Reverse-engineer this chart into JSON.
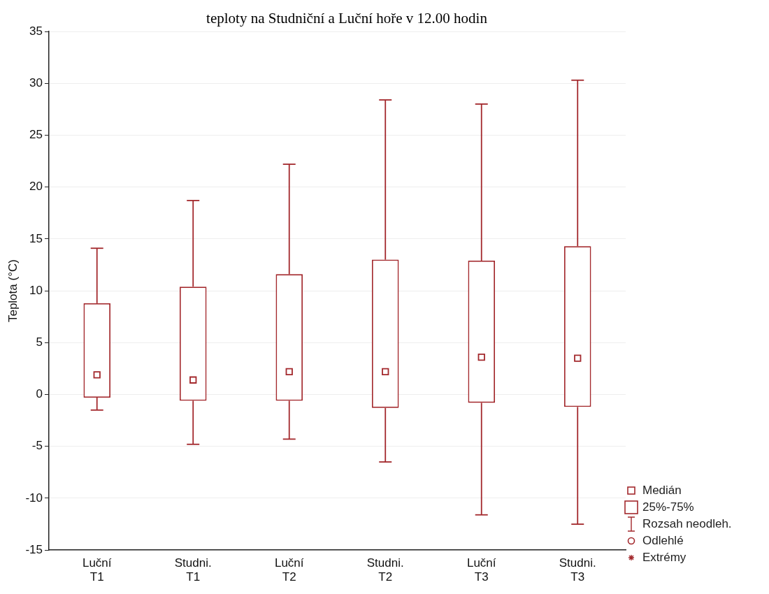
{
  "chart_data": {
    "type": "box",
    "title": "teploty na Studniční a Luční hoře v 12.00 hodin",
    "ylabel": "Teplota (°C)",
    "categories": [
      "Luční T1",
      "Studni. T1",
      "Luční T2",
      "Studni. T2",
      "Luční T3",
      "Studni. T3"
    ],
    "color": "#a3282c",
    "boxes": [
      {
        "low": -1.5,
        "q1": -0.3,
        "median": 1.9,
        "q3": 8.8,
        "high": 14.1
      },
      {
        "low": -4.8,
        "q1": -0.6,
        "median": 1.4,
        "q3": 10.4,
        "high": 18.7
      },
      {
        "low": -4.3,
        "q1": -0.6,
        "median": 2.2,
        "q3": 11.6,
        "high": 22.2
      },
      {
        "low": -6.5,
        "q1": -1.3,
        "median": 2.2,
        "q3": 13.0,
        "high": 28.4
      },
      {
        "low": -11.6,
        "q1": -0.8,
        "median": 3.6,
        "q3": 12.9,
        "high": 28.0
      },
      {
        "low": -12.5,
        "q1": -1.2,
        "median": 3.5,
        "q3": 14.3,
        "high": 30.3
      }
    ],
    "ylim": [
      -15,
      35
    ],
    "yticks": [
      -15,
      -10,
      -5,
      0,
      5,
      10,
      15,
      20,
      25,
      30,
      35
    ],
    "grid": "y",
    "annotations": [
      "Medián",
      "25%-75%",
      "Rozsah neodleh.",
      "Odlehlé",
      "Extrémy"
    ]
  }
}
